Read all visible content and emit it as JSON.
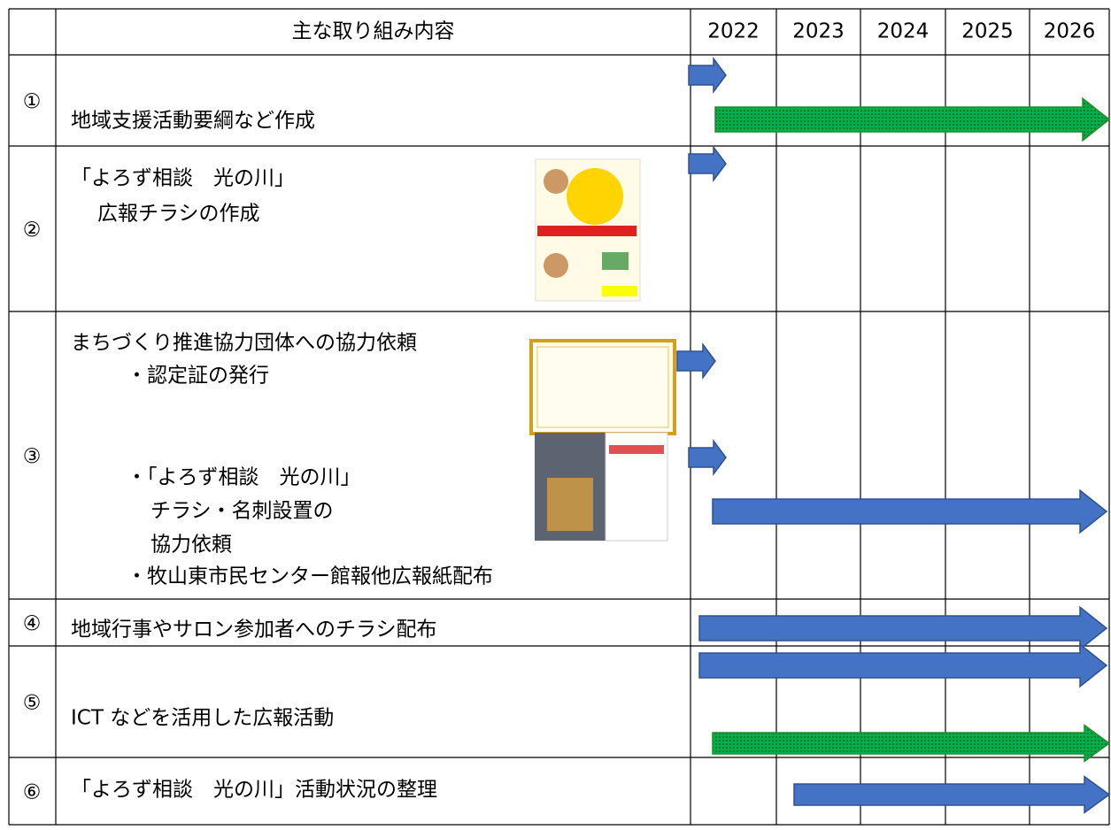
{
  "header": {
    "columns": [
      "主な取り組み内容",
      "2022",
      "2023",
      "2024",
      "2025",
      "2026"
    ]
  },
  "rows": [
    {
      "number": "①",
      "lines": [
        "地域支援活動要綱など作成"
      ]
    },
    {
      "number": "②",
      "lines": [
        "「よろず相談　光の川」",
        "広報チラシの作成"
      ]
    },
    {
      "number": "③",
      "lines": [
        "まちづくり推進協力団体への協力依頼",
        "・認定証の発行",
        "・「よろず相談　光の川」",
        "チラシ・名刺設置の",
        "協力依頼",
        "・牧山東市民センター館報他広報紙配布"
      ]
    },
    {
      "number": "④",
      "lines": [
        "地域行事やサロン参加者へのチラシ配布"
      ]
    },
    {
      "number": "⑤",
      "lines": [
        "ICT などを活用した広報活動"
      ]
    },
    {
      "number": "⑥",
      "lines": [
        "「よろず相談　光の川」活動状況の整理"
      ]
    }
  ]
}
